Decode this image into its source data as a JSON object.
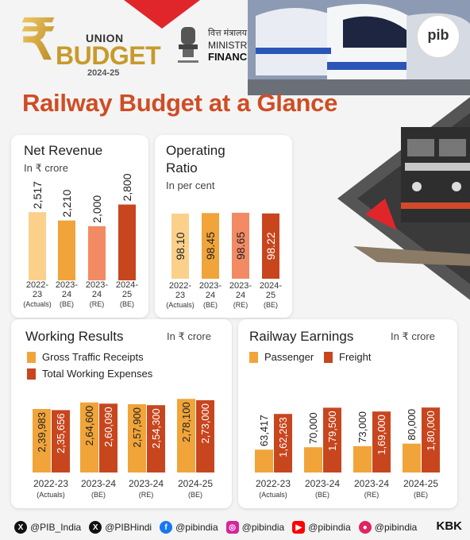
{
  "header": {
    "logo_rupee": "₹",
    "logo_union": "UNION",
    "logo_budget": "BUDGET",
    "logo_year": "2024-25",
    "ministry_hindi": "वित्त मंत्रालय",
    "ministry_line1": "MINISTRY OF",
    "ministry_line2": "FINANCE",
    "pib_logo": "pib"
  },
  "title": "Railway Budget at a Glance",
  "colors": {
    "light_orange": "#fbd08a",
    "orange": "#f0a43a",
    "salmon": "#f28a64",
    "dark_orange": "#c8461e",
    "title_red": "#cf4d24",
    "brand_red": "#e0262b"
  },
  "chart_data": [
    {
      "type": "bar",
      "title": "Net Revenue",
      "subtitle": "In ₹ crore",
      "categories": [
        [
          "2022-",
          "23",
          "(Actuals)"
        ],
        [
          "2023-",
          "24",
          "(BE)"
        ],
        [
          "2023-",
          "24",
          "(RE)"
        ],
        [
          "2024-",
          "25",
          "(BE)"
        ]
      ],
      "values": [
        2517,
        2210,
        2000,
        2800
      ],
      "labels": [
        "2,517",
        "2,210",
        "2,000",
        "2,800"
      ],
      "ylim": [
        0,
        4400
      ]
    },
    {
      "type": "bar",
      "title_line1": "Operating",
      "title_line2": "Ratio",
      "subtitle": "In per cent",
      "categories": [
        [
          "2022-",
          "23",
          "(Actuals)"
        ],
        [
          "2023-",
          "24",
          "(BE)"
        ],
        [
          "2023-",
          "24",
          "(RE)"
        ],
        [
          "2024-",
          "25",
          "(BE)"
        ]
      ],
      "values": [
        98.1,
        98.45,
        98.65,
        98.22
      ],
      "labels": [
        "98.10",
        "98.45",
        "98.65",
        "98.22"
      ]
    },
    {
      "type": "bar",
      "title": "Working Results",
      "unit": "In ₹ crore",
      "categories": [
        [
          "2022-23",
          "(Actuals)"
        ],
        [
          "2023-24",
          "(BE)"
        ],
        [
          "2023-24",
          "(RE)"
        ],
        [
          "2024-25",
          "(BE)"
        ]
      ],
      "series": [
        {
          "name": "Gross Traffic Receipts",
          "values": [
            239983,
            264600,
            257900,
            278100
          ],
          "labels": [
            "2,39,983",
            "2,64,600",
            "2,57,900",
            "2,78,100"
          ]
        },
        {
          "name": "Total Working Expenses",
          "values": [
            235656,
            260090,
            254300,
            273000
          ],
          "labels": [
            "2,35,656",
            "2,60,090",
            "2,54,300",
            "2,73,000"
          ]
        }
      ],
      "ylim": [
        0,
        300000
      ]
    },
    {
      "type": "bar",
      "title": "Railway Earnings",
      "unit": "In ₹ crore",
      "categories": [
        [
          "2022-23",
          "(Actuals)"
        ],
        [
          "2023-24",
          "(BE)"
        ],
        [
          "2023-24",
          "(RE)"
        ],
        [
          "2024-25",
          "(BE)"
        ]
      ],
      "series": [
        {
          "name": "Passenger",
          "values": [
            63417,
            70000,
            73000,
            80000
          ],
          "labels": [
            "63,417",
            "70,000",
            "73,000",
            "80,000"
          ]
        },
        {
          "name": "Freight",
          "values": [
            162263,
            179500,
            169000,
            180000
          ],
          "labels": [
            "1,62,263",
            "1,79,500",
            "1,69,000",
            "1,80,000"
          ]
        }
      ],
      "ylim": [
        0,
        220000
      ]
    }
  ],
  "footer": {
    "handles": [
      {
        "icon": "x-icon",
        "text": "@PIB_India"
      },
      {
        "icon": "x-icon",
        "text": "@PIBHindi"
      },
      {
        "icon": "facebook-icon",
        "text": "@pibindia"
      },
      {
        "icon": "instagram-icon",
        "text": "@pibindia"
      },
      {
        "icon": "youtube-icon",
        "text": "@pibindia"
      },
      {
        "icon": "koo-icon",
        "text": "@pibindia"
      }
    ],
    "credit": "KBK"
  }
}
